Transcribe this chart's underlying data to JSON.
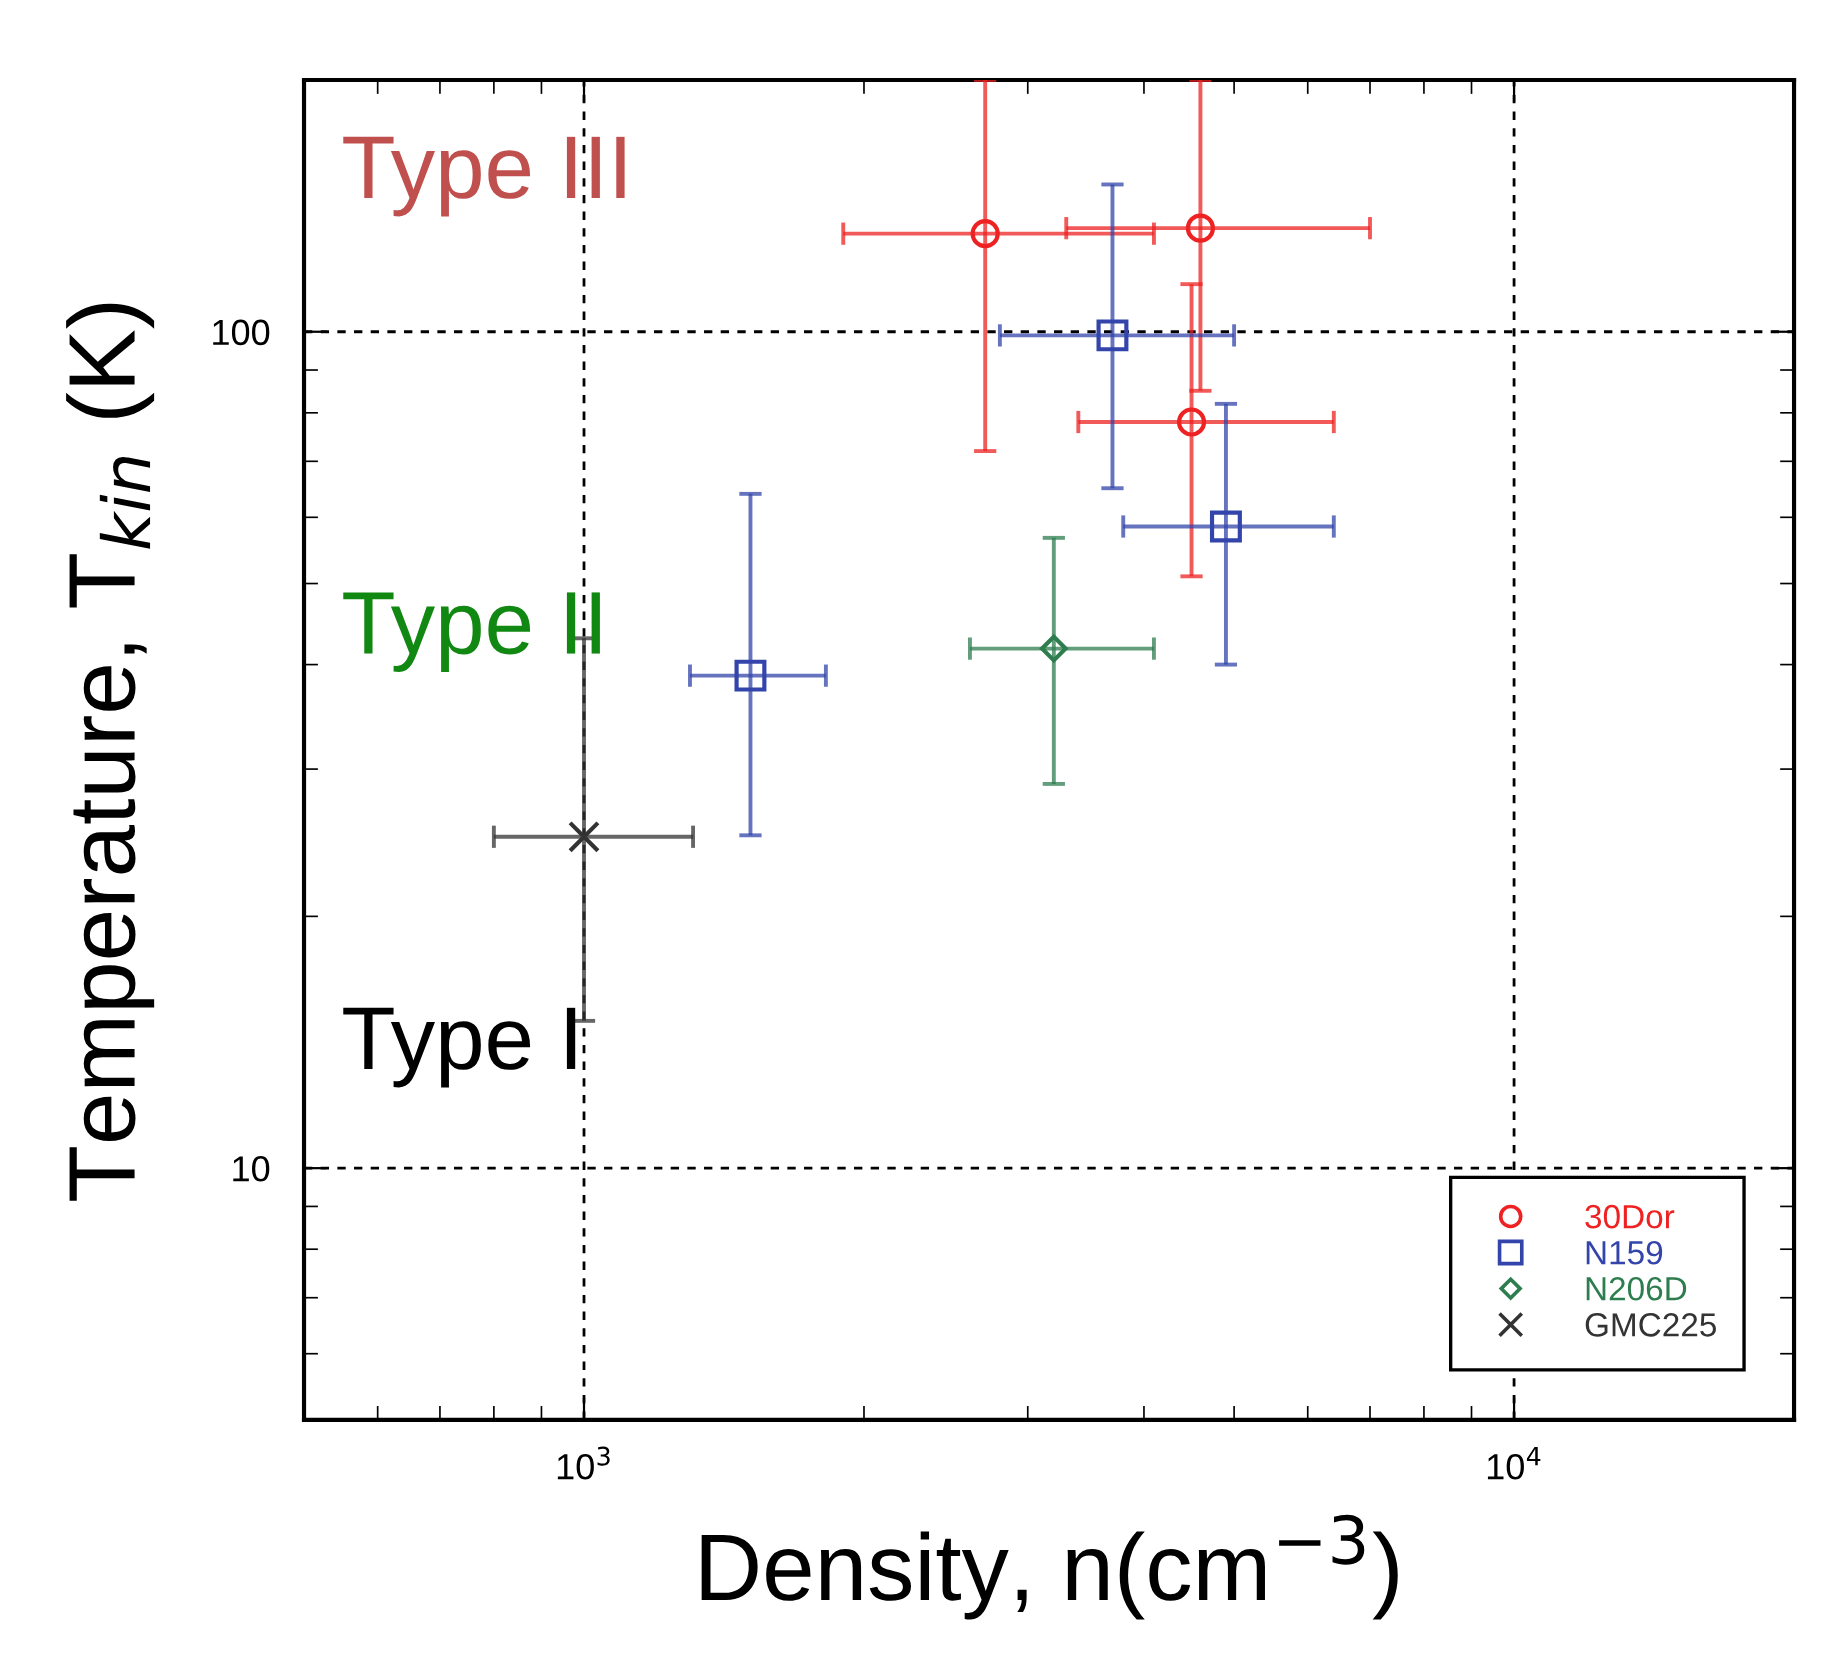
{
  "chart_data": {
    "type": "scatter",
    "xlabel": "Density, n(cm$^{−3}$)",
    "ylabel": "Temperature, T$_{kin}$ (K)",
    "log": "xy",
    "xlim": [
      500,
      20000
    ],
    "ylim": [
      5,
      200
    ],
    "xticks": [
      {
        "value": 1000,
        "label": "10$^{3}$"
      },
      {
        "value": 10000,
        "label": "10$^{4}$"
      }
    ],
    "yticks": [
      10,
      100
    ],
    "grid": true,
    "legend": "bottom right",
    "annotations": [
      "Type III",
      "Type II",
      "Type I"
    ],
    "series": [
      {
        "name": "30Dor",
        "color": "#ee2222",
        "marker": "circle",
        "x": [
          2700,
          4600,
          4500
        ],
        "values": [
          131,
          133,
          78
        ],
        "errors": [
          [
            72,
            200
          ],
          [
            85,
            200
          ],
          [
            51,
            114
          ]
        ],
        "xerrors": [
          [
            1900,
            4100
          ],
          [
            3300,
            7000
          ],
          [
            3400,
            6400
          ]
        ]
      },
      {
        "name": "N159",
        "color": "#3344aa",
        "marker": "square",
        "x": [
          3700,
          4900,
          1510
        ],
        "values": [
          99,
          58.5,
          38.8
        ],
        "errors": [
          [
            65,
            150
          ],
          [
            40,
            82
          ],
          [
            25,
            64
          ]
        ],
        "xerrors": [
          [
            2800,
            5000
          ],
          [
            3800,
            6400
          ],
          [
            1300,
            1820
          ]
        ]
      },
      {
        "name": "N206D",
        "color": "#2e7d4f",
        "marker": "diamond",
        "x": [
          3200
        ],
        "values": [
          41.8
        ],
        "errors": [
          [
            28.8,
            56.7
          ]
        ],
        "xerrors": [
          [
            2600,
            4100
          ]
        ]
      },
      {
        "name": "GMC225",
        "color": "#333333",
        "marker": "cross",
        "x": [
          1000
        ],
        "values": [
          24.9
        ],
        "errors": [
          [
            15,
            43
          ]
        ],
        "xerrors": [
          [
            800,
            1310
          ]
        ]
      }
    ]
  }
}
